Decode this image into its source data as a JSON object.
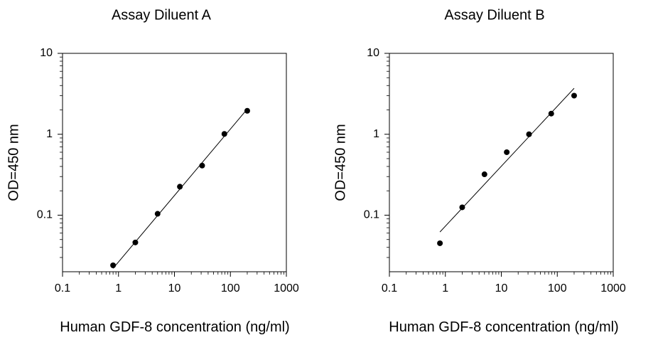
{
  "chart_data": [
    {
      "type": "scatter",
      "title": "Assay Diluent A",
      "xlabel": "Human GDF-8 concentration (ng/ml)",
      "ylabel": "OD=450 nm",
      "xscale": "log",
      "yscale": "log",
      "xlim": [
        0.1,
        1000
      ],
      "ylim": [
        0.02,
        10
      ],
      "xticks": [
        "0.1",
        "1",
        "10",
        "100",
        "1000"
      ],
      "yticks": [
        "0.1",
        "1",
        "10"
      ],
      "grid": false,
      "points": [
        {
          "x": 0.8,
          "y": 0.024
        },
        {
          "x": 2.0,
          "y": 0.046
        },
        {
          "x": 5.0,
          "y": 0.104
        },
        {
          "x": 12.5,
          "y": 0.225
        },
        {
          "x": 31.25,
          "y": 0.41
        },
        {
          "x": 78.0,
          "y": 1.01
        },
        {
          "x": 200.0,
          "y": 1.95
        }
      ],
      "fit_line": {
        "x": [
          0.8,
          200.0
        ],
        "y": [
          0.022,
          2.05
        ]
      }
    },
    {
      "type": "scatter",
      "title": "Assay Diluent B",
      "xlabel": "Human GDF-8 concentration (ng/ml)",
      "ylabel": "OD=450 nm",
      "xscale": "log",
      "yscale": "log",
      "xlim": [
        0.1,
        1000
      ],
      "ylim": [
        0.02,
        10
      ],
      "xticks": [
        "0.1",
        "1",
        "10",
        "100",
        "1000"
      ],
      "yticks": [
        "0.1",
        "1",
        "10"
      ],
      "grid": false,
      "points": [
        {
          "x": 0.8,
          "y": 0.045
        },
        {
          "x": 2.0,
          "y": 0.125
        },
        {
          "x": 5.0,
          "y": 0.32
        },
        {
          "x": 12.5,
          "y": 0.6
        },
        {
          "x": 31.25,
          "y": 1.0
        },
        {
          "x": 78.0,
          "y": 1.8
        },
        {
          "x": 200.0,
          "y": 3.0
        }
      ],
      "fit_line": {
        "x": [
          0.8,
          200.0
        ],
        "y": [
          0.062,
          3.7
        ]
      }
    }
  ]
}
